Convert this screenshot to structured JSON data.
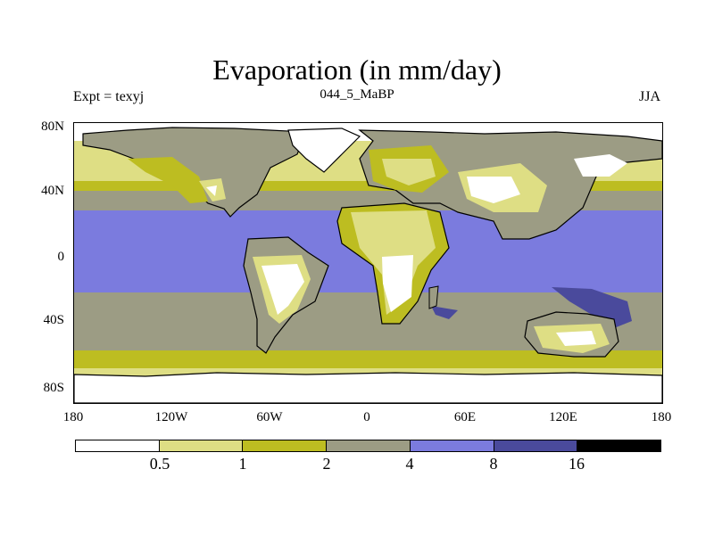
{
  "title": "Evaporation (in mm/day)",
  "subtitle_left": "Expt = texyj",
  "subtitle_center": "044_5_MaBP",
  "subtitle_right": "JJA",
  "lat_labels": [
    "80N",
    "40N",
    "0",
    "40S",
    "80S"
  ],
  "lon_labels": [
    "180",
    "120W",
    "60W",
    "0",
    "60E",
    "120E",
    "180"
  ],
  "colorbar": {
    "levels": [
      "0.5",
      "1",
      "2",
      "4",
      "8",
      "16"
    ],
    "colors": [
      "#ffffff",
      "#dede84",
      "#bdbd21",
      "#9c9c84",
      "#7b7bde",
      "#4a4a9c",
      "#000000"
    ]
  }
}
